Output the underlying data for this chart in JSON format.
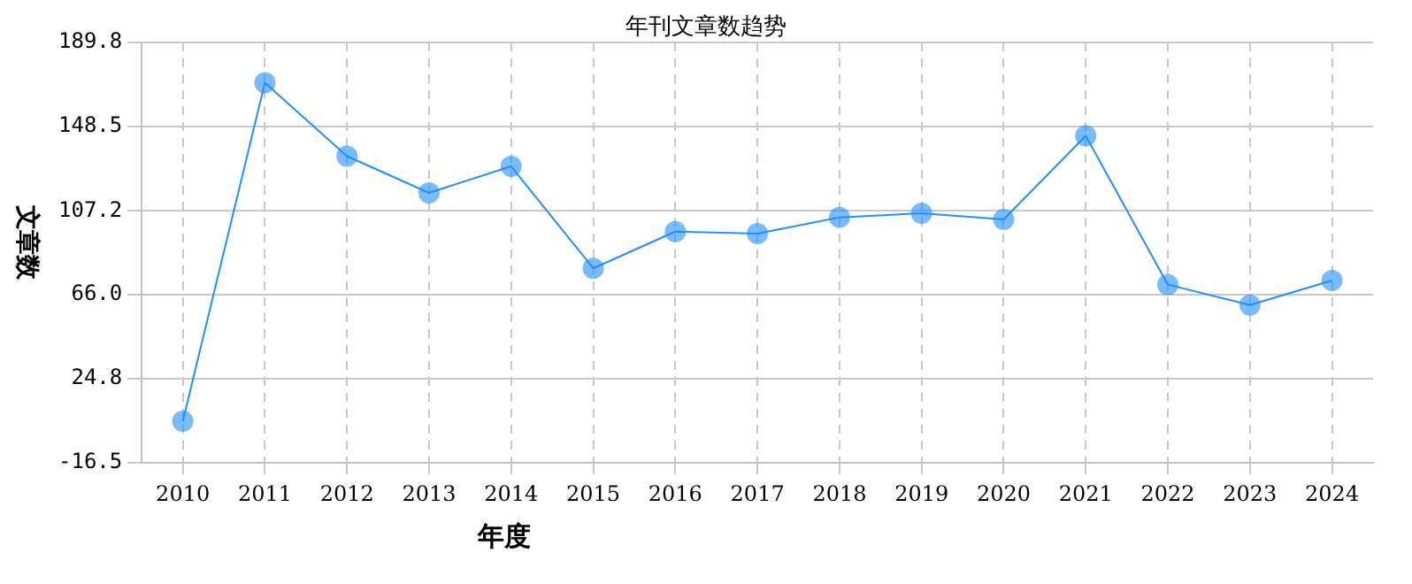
{
  "chart_data": {
    "type": "line",
    "title": "年刊文章数趋势",
    "xlabel": "年度",
    "ylabel": "文章数",
    "categories": [
      "2010",
      "2011",
      "2012",
      "2013",
      "2014",
      "2015",
      "2016",
      "2017",
      "2018",
      "2019",
      "2020",
      "2021",
      "2022",
      "2023",
      "2024"
    ],
    "series": [
      {
        "color": "#1e90ff",
        "values": [
          4,
          170,
          134,
          116,
          129,
          79,
          97,
          96,
          104,
          106,
          103,
          144,
          71,
          61,
          73
        ]
      }
    ],
    "ylim": [
      -16.5,
      189.8
    ],
    "yticks": [
      {
        "value": -16.5,
        "label": "-16.5"
      },
      {
        "value": 24.8,
        "label": "24.8"
      },
      {
        "value": 66,
        "label": "66.0"
      },
      {
        "value": 107.2,
        "label": "107.2"
      },
      {
        "value": 148.5,
        "label": "148.5"
      },
      {
        "value": 189.8,
        "label": "189.8"
      }
    ],
    "grid": true,
    "legend": false,
    "marker": "circle",
    "line_style": "solid"
  }
}
